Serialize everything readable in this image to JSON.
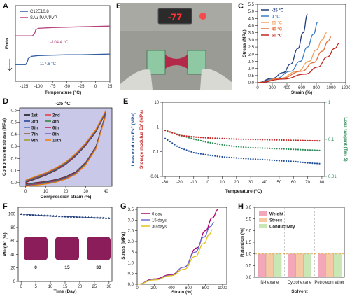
{
  "panels": {
    "A": {
      "label": "A",
      "type": "dsc",
      "legend": [
        "C12E10.8",
        "SAu-PAA/PVP"
      ],
      "legend_colors": [
        "#2f5c9e",
        "#b5437e"
      ],
      "ylabel": "Endo",
      "xlabel": "Temperature (°C)",
      "xticks": [
        "-125",
        "-100",
        "-75",
        "-50",
        "-25",
        "0",
        "25"
      ],
      "annotations": [
        "-104.4 °C",
        "-117.6 °C"
      ],
      "chart_data": {
        "type": "line",
        "xlim": [
          -140,
          25
        ],
        "series": [
          {
            "name": "C12E10.8",
            "x": [
              -140,
              -122,
              -119,
              -117.6,
              -112,
              -100,
              -75,
              -50,
              -25,
              0,
              25
            ],
            "y": [
              0.22,
              0.22,
              0.26,
              0.3,
              0.33,
              0.34,
              0.345,
              0.35,
              0.35,
              0.355,
              0.36
            ]
          },
          {
            "name": "SAu-PAA/PVP",
            "x": [
              -140,
              -110,
              -106,
              -104.4,
              -100,
              -75,
              -50,
              -25,
              0,
              25
            ],
            "y": [
              0.6,
              0.6,
              0.64,
              0.68,
              0.7,
              0.71,
              0.715,
              0.72,
              0.725,
              0.73
            ]
          }
        ]
      }
    },
    "B": {
      "label": "B",
      "readout": "-77",
      "type": "photo"
    },
    "C": {
      "label": "C",
      "ylabel": "Stress (MPa)",
      "xlabel": "Strain (%)",
      "yticks": [
        "0.0",
        "0.5",
        "1.0",
        "1.5",
        "2.0",
        "2.5",
        "3.0",
        "3.5",
        "4.0",
        "4.5",
        "5.0",
        "5.5"
      ],
      "xticks": [
        "0",
        "200",
        "400",
        "600",
        "800",
        "1000",
        "1200"
      ],
      "chart_data": {
        "type": "line",
        "xlim": [
          0,
          1200
        ],
        "ylim": [
          0,
          5.5
        ],
        "series": [
          {
            "name": "-25 °C",
            "color": "#1f3d7a",
            "x": [
              0,
              200,
              350,
              450,
              550,
              620,
              680
            ],
            "y": [
              0,
              0.3,
              0.7,
              1.3,
              2.4,
              3.5,
              4.8
            ]
          },
          {
            "name": "0 °C",
            "color": "#3a7dc9",
            "x": [
              0,
              250,
              450,
              580,
              680,
              760,
              820
            ],
            "y": [
              0,
              0.3,
              0.8,
              1.5,
              2.5,
              3.4,
              4.25
            ]
          },
          {
            "name": "25 °C",
            "color": "#f4a261",
            "x": [
              0,
              300,
              550,
              700,
              800,
              880,
              940
            ],
            "y": [
              0,
              0.3,
              0.8,
              1.5,
              2.3,
              3.0,
              3.5
            ]
          },
          {
            "name": "40 °C",
            "color": "#e76f3c",
            "x": [
              0,
              320,
              600,
              760,
              880,
              960,
              1000
            ],
            "y": [
              0,
              0.3,
              0.8,
              1.4,
              2.2,
              2.9,
              3.2
            ]
          },
          {
            "name": "60 °C",
            "color": "#c0271f",
            "x": [
              0,
              350,
              650,
              820,
              950,
              1050,
              1110
            ],
            "y": [
              0,
              0.25,
              0.6,
              1.1,
              1.8,
              2.4,
              2.75
            ]
          }
        ]
      }
    },
    "D": {
      "label": "D",
      "title": "-25 °C",
      "ylabel": "Compression stress (MPa)",
      "xlabel": "Compression strain (%)",
      "yticks": [
        "0.0",
        "0.1",
        "0.2",
        "0.3",
        "0.4",
        "0.5",
        "0.6"
      ],
      "xticks": [
        "0",
        "10",
        "20",
        "30",
        "40"
      ],
      "legend": [
        "1st",
        "2nd",
        "3rd",
        "4th",
        "5th",
        "6th",
        "7th",
        "8th",
        "9th",
        "10th"
      ],
      "legend_colors": [
        "#111111",
        "#e53935",
        "#1e3a8a",
        "#2e7d32",
        "#4a6fb5",
        "#c2185b",
        "#8e5a2b",
        "#7e57c2",
        "#9e9d24",
        "#f57c00"
      ],
      "bg_color": "#c9c8e8",
      "chart_data": {
        "type": "line",
        "xlim": [
          -3,
          43
        ],
        "ylim": [
          -0.03,
          0.62
        ],
        "load": {
          "x": [
            0,
            5,
            10,
            15,
            20,
            25,
            30,
            35,
            40
          ],
          "y": [
            0.0,
            0.03,
            0.06,
            0.1,
            0.15,
            0.22,
            0.31,
            0.42,
            0.58
          ]
        },
        "unload": {
          "x": [
            40,
            35,
            30,
            25,
            20,
            15,
            10,
            5,
            0
          ],
          "y": [
            0.58,
            0.3,
            0.17,
            0.09,
            0.05,
            0.025,
            0.01,
            0.0,
            -0.01
          ]
        }
      }
    },
    "E": {
      "label": "E",
      "ylabel_left1": "Loss modulus Es'' (MPa)",
      "ylabel_left2": "Storage modulus Es' (MPa)",
      "ylabel_right": "Loss tangent (Tan δ)",
      "xlabel": "Temperature (°C)",
      "xticks": [
        "-30",
        "-20",
        "-10",
        "0",
        "10",
        "20",
        "30",
        "40",
        "50",
        "60",
        "70",
        "80"
      ],
      "yticks_left": [
        "10",
        "1",
        "0.1",
        "0.01"
      ],
      "yticks_right": [
        "1",
        "0.1",
        "0.01"
      ],
      "chart_data": {
        "type": "line",
        "xlim": [
          -32,
          82
        ],
        "series": [
          {
            "name": "Loss tangent",
            "color": "#2e8b57",
            "x": [
              -30,
              -20,
              -10,
              0,
              10,
              20,
              30,
              40,
              50,
              60,
              70,
              80
            ],
            "y": [
              0.45,
              0.33,
              0.25,
              0.2,
              0.17,
              0.15,
              0.14,
              0.135,
              0.13,
              0.125,
              0.12,
              0.115
            ]
          },
          {
            "name": "Storage modulus",
            "color": "#c62828",
            "x": [
              -30,
              -20,
              -10,
              0,
              10,
              20,
              30,
              40,
              50,
              60,
              70,
              80
            ],
            "y": [
              0.45,
              0.32,
              0.29,
              0.27,
              0.26,
              0.25,
              0.245,
              0.24,
              0.235,
              0.23,
              0.225,
              0.22
            ]
          },
          {
            "name": "Loss modulus",
            "color": "#1f4e9a",
            "x": [
              -30,
              -20,
              -10,
              0,
              10,
              20,
              30,
              40,
              50,
              60,
              70,
              80
            ],
            "y": [
              0.26,
              0.14,
              0.1,
              0.085,
              0.075,
              0.07,
              0.065,
              0.062,
              0.058,
              0.055,
              0.05,
              0.047
            ]
          }
        ]
      }
    },
    "F": {
      "label": "F",
      "ylabel": "Weight (%)",
      "xlabel": "Time (Day)",
      "yticks": [
        "0",
        "20",
        "40",
        "60",
        "80",
        "100"
      ],
      "xticks": [
        "0",
        "5",
        "10",
        "15",
        "20",
        "25",
        "30"
      ],
      "photo_labels": [
        "0",
        "15",
        "30"
      ],
      "chart_data": {
        "type": "line",
        "xlim": [
          -1,
          31
        ],
        "ylim": [
          0,
          110
        ],
        "series": [
          {
            "name": "Weight",
            "color": "#1f3d7a",
            "x": [
              0,
              1,
              2,
              3,
              4,
              5,
              6,
              7,
              8,
              9,
              10,
              11,
              12,
              13,
              14,
              15,
              16,
              17,
              18,
              19,
              20,
              21,
              22,
              23,
              24,
              25,
              26,
              27,
              28,
              29,
              30
            ],
            "y": [
              100,
              99.6,
              99.3,
              99,
              98.8,
              98.5,
              98.3,
              98,
              97.8,
              97.6,
              97.4,
              97.2,
              97,
              96.8,
              96.6,
              96.4,
              96.2,
              96,
              95.8,
              95.6,
              95.5,
              95.3,
              95.1,
              95,
              94.8,
              94.6,
              94.5,
              94.3,
              94.2,
              94,
              93.9
            ]
          }
        ]
      }
    },
    "G": {
      "label": "G",
      "ylabel": "Stress (MPa)",
      "xlabel": "Strain (%)",
      "yticks": [
        "0.0",
        "0.5",
        "1.0",
        "1.5",
        "2.0",
        "2.5",
        "3.0",
        "3.5"
      ],
      "xticks": [
        "0",
        "200",
        "400",
        "600",
        "800",
        "1000"
      ],
      "chart_data": {
        "type": "line",
        "xlim": [
          0,
          1050
        ],
        "ylim": [
          0,
          3.6
        ],
        "series": [
          {
            "name": "0 day",
            "color": "#b0006d",
            "x": [
              0,
              200,
              400,
              550,
              700,
              800,
              880,
              950
            ],
            "y": [
              0,
              0.25,
              0.45,
              0.8,
              1.7,
              2.5,
              3.1,
              3.5
            ]
          },
          {
            "name": "15 days",
            "color": "#6b6fd6",
            "x": [
              0,
              200,
              400,
              550,
              680,
              780,
              860,
              900
            ],
            "y": [
              0,
              0.22,
              0.42,
              0.8,
              1.5,
              2.2,
              2.7,
              2.9
            ]
          },
          {
            "name": "30 days",
            "color": "#e3c21a",
            "x": [
              0,
              200,
              400,
              550,
              680,
              780,
              850,
              880
            ],
            "y": [
              0,
              0.2,
              0.4,
              0.7,
              1.3,
              1.9,
              2.35,
              2.55
            ]
          }
        ]
      }
    },
    "H": {
      "label": "H",
      "ylabel": "Retention (%)",
      "xlabel": "Solvent",
      "yticks": [
        "0.0",
        "0.5",
        "1.0",
        "1.5",
        "2.0",
        "2.5",
        "3.0"
      ],
      "categories": [
        "N-hexane",
        "Cyclohexane",
        "Petroleum ether"
      ],
      "legend": [
        "Weight",
        "Stress",
        "Conductivity"
      ],
      "legend_colors": [
        "#f4a7b9",
        "#f6c9a5",
        "#c9e6b5"
      ],
      "chart_data": {
        "type": "bar",
        "ylim": [
          0,
          3
        ],
        "series": [
          {
            "name": "Weight",
            "values": [
              1.0,
              1.0,
              1.0
            ]
          },
          {
            "name": "Stress",
            "values": [
              1.0,
              1.0,
              1.0
            ]
          },
          {
            "name": "Conductivity",
            "values": [
              1.0,
              1.0,
              1.0
            ]
          }
        ]
      }
    }
  }
}
